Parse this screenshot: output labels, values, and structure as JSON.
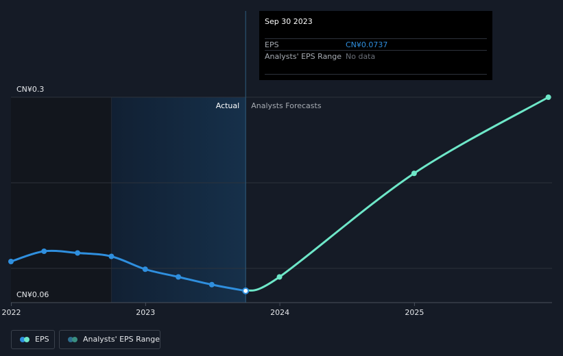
{
  "chart_data": {
    "type": "line",
    "x_ticks": [
      "2022",
      "2023",
      "2024",
      "2025"
    ],
    "y_tick_labels": [
      "CN¥0.3",
      "CN¥0.06"
    ],
    "ylim": [
      0.06,
      0.3
    ],
    "region_labels": {
      "actual": "Actual",
      "forecast": "Analysts Forecasts"
    },
    "series": [
      {
        "name": "EPS",
        "color": "#2f8fde",
        "points": [
          {
            "x": "2021-12-31",
            "y": 0.108
          },
          {
            "x": "2022-03-31",
            "y": 0.12
          },
          {
            "x": "2022-06-30",
            "y": 0.118
          },
          {
            "x": "2022-09-30",
            "y": 0.114
          },
          {
            "x": "2022-12-31",
            "y": 0.099
          },
          {
            "x": "2023-03-31",
            "y": 0.09
          },
          {
            "x": "2023-06-30",
            "y": 0.081
          },
          {
            "x": "2023-09-30",
            "y": 0.0737
          }
        ]
      },
      {
        "name": "Forecast",
        "color": "#6ee7c8",
        "points": [
          {
            "x": "2023-09-30",
            "y": 0.0737
          },
          {
            "x": "2023-12-31",
            "y": 0.09
          },
          {
            "x": "2024-12-31",
            "y": 0.211
          },
          {
            "x": "2025-12-31",
            "y": 0.3
          }
        ]
      }
    ],
    "x_time_range": [
      "2021-12-31",
      "2026-01-10"
    ],
    "highlight_range": [
      "2022-09-30",
      "2023-09-30"
    ],
    "divider_x": "2023-09-30",
    "gridlines": [
      0.3,
      0.2,
      0.1
    ]
  },
  "tooltip": {
    "date": "Sep 30 2023",
    "rows": [
      {
        "label": "EPS",
        "value": "CN¥0.0737",
        "color": "#2f8fde"
      },
      {
        "label": "Analysts' EPS Range",
        "value": "No data",
        "color": "#6b7079"
      }
    ]
  },
  "legend": [
    {
      "label": "EPS",
      "colors": [
        "#2f8fde",
        "#6ee7c8"
      ]
    },
    {
      "label": "Analysts' EPS Range",
      "colors": [
        "#2e6f90",
        "#3a8f82"
      ]
    }
  ],
  "colors": {
    "background": "#151b26",
    "grid": "#2d333c",
    "highlight": "#13263a"
  }
}
